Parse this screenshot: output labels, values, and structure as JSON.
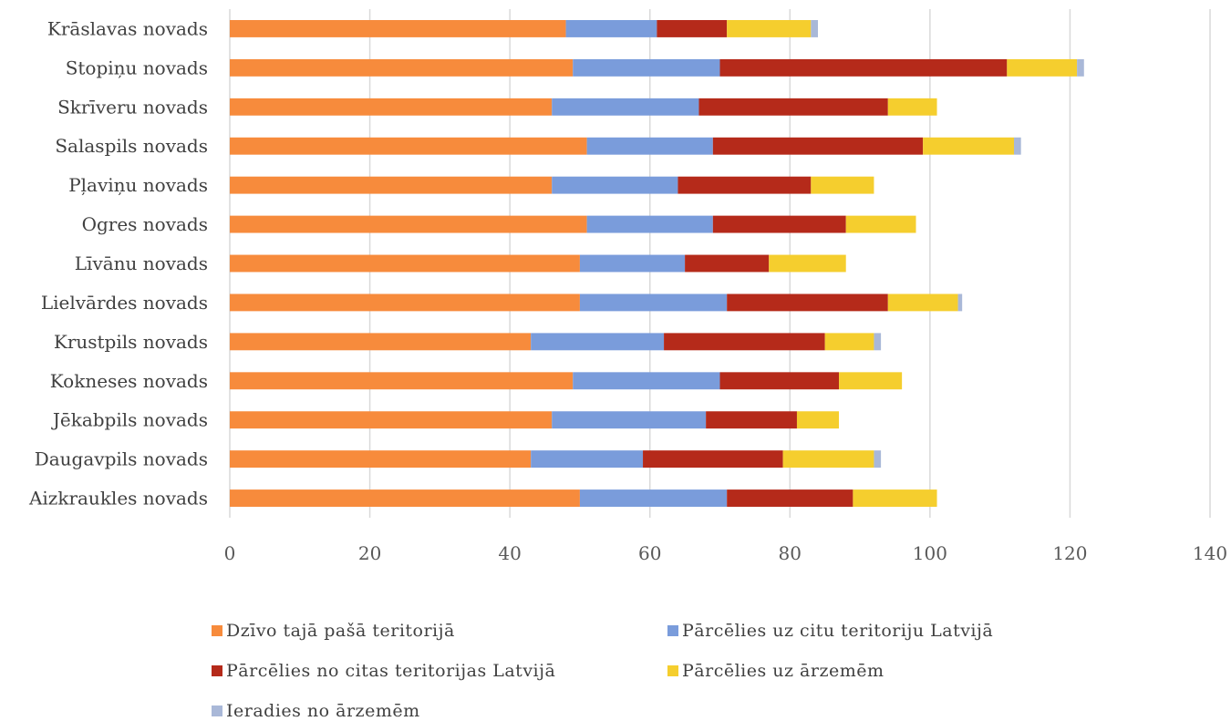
{
  "chart_data": {
    "type": "bar",
    "orientation": "horizontal",
    "stacked": true,
    "title": "",
    "xlabel": "",
    "ylabel": "",
    "xlim": [
      0,
      140
    ],
    "x_ticks": [
      0,
      20,
      40,
      60,
      80,
      100,
      120,
      140
    ],
    "grid": "vertical",
    "legend_position": "bottom",
    "categories": [
      "Krāslavas novads",
      "Stopiņu novads",
      "Skrīveru novads",
      "Salaspils novads",
      "Pļaviņu novads",
      "Ogres novads",
      "Līvānu novads",
      "Lielvārdes novads",
      "Krustpils novads",
      "Kokneses novads",
      "Jēkabpils novads",
      "Daugavpils novads",
      "Aizkraukles novads"
    ],
    "series": [
      {
        "name": "Dzīvo tajā pašā teritorijā",
        "color": "#f78b3c",
        "values": [
          48,
          49,
          46,
          51,
          46,
          51,
          50,
          50,
          43,
          49,
          46,
          43,
          50
        ]
      },
      {
        "name": "Pārcēlies uz citu teritoriju Latvijā",
        "color": "#7a9cdb",
        "values": [
          13,
          21,
          21,
          18,
          18,
          18,
          15,
          21,
          19,
          21,
          22,
          16,
          21
        ]
      },
      {
        "name": "Pārcēlies no citas teritorijas Latvijā",
        "color": "#b52a1a",
        "values": [
          10,
          41,
          27,
          30,
          19,
          19,
          12,
          23,
          23,
          17,
          13,
          20,
          18
        ]
      },
      {
        "name": "Pārcēlies uz ārzemēm",
        "color": "#f5ce2e",
        "values": [
          12,
          10,
          7,
          13,
          9,
          10,
          11,
          10,
          7,
          9,
          6,
          13,
          12
        ]
      },
      {
        "name": "Ieradies no ārzemēm",
        "color": "#a9b8d8",
        "values": [
          1,
          1,
          0,
          1,
          0,
          0,
          0,
          0.6,
          1,
          0,
          0,
          1,
          0
        ]
      }
    ]
  }
}
